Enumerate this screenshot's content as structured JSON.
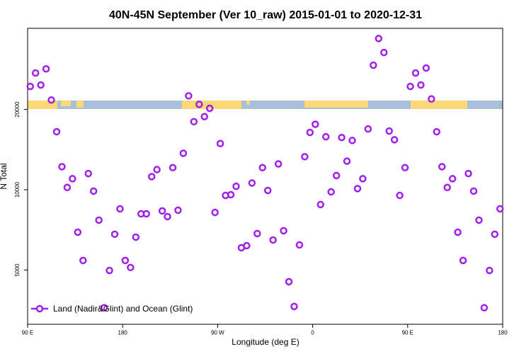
{
  "chart_data": {
    "type": "scatter",
    "title": "40N-45N September (Ver 10_raw)   2015-01-01 to 2020-12-31",
    "x_label": "Longitude (deg E)",
    "y_label": "N Total",
    "log_y": true,
    "legend_position": "bottomleft",
    "xlim": [
      90,
      540
    ],
    "xticks": [
      {
        "value": 90,
        "label": "90 E"
      },
      180,
      {
        "value": 270,
        "label": "90 W"
      },
      {
        "value": 360,
        "label": "0"
      },
      {
        "value": 450,
        "label": "90 E"
      },
      {
        "value": 540,
        "label": "180"
      }
    ],
    "ylim": [
      3130,
      40300
    ],
    "yticks": [
      5000,
      10000,
      20000
    ],
    "series": [
      {
        "name": "Land (Nadir&Glint) and Ocean (Glint)",
        "color": "#a020f0",
        "x": [
          92.5,
          97.5,
          102.5,
          107.5,
          112.5,
          117.5,
          122.5,
          127.5,
          132.5,
          137.5,
          142.5,
          147.5,
          152.5,
          157.5,
          162.5,
          167.5,
          172.5,
          177.5,
          182.5,
          187.5,
          192.5,
          197.5,
          202.5,
          207.5,
          212.5,
          217.5,
          222.5,
          227.5,
          232.5,
          237.5,
          242.5,
          247.5,
          252.5,
          257.5,
          262.5,
          267.5,
          272.5,
          277.5,
          282.5,
          287.5,
          292.5,
          297.5,
          302.5,
          307.5,
          312.5,
          317.5,
          322.5,
          327.5,
          332.5,
          337.5,
          342.5,
          347.5,
          352.5,
          357.5,
          362.5,
          367.5,
          372.5,
          377.5,
          382.5,
          387.5,
          392.5,
          397.5,
          402.5,
          407.5,
          412.5,
          417.5,
          422.5,
          427.5,
          432.5,
          437.5,
          442.5,
          447.5,
          452.5,
          457.5,
          462.5,
          467.5,
          472.5,
          477.5,
          482.5,
          487.5,
          492.5,
          497.5,
          502.5,
          507.5,
          512.5,
          517.5,
          522.5,
          527.5,
          532.5,
          537.5
        ],
        "values": [
          24400,
          27400,
          24700,
          28400,
          21700,
          16500,
          12200,
          10200,
          11000,
          6930,
          5430,
          11500,
          9880,
          7690,
          3610,
          4980,
          6810,
          8480,
          5430,
          5110,
          6640,
          8120,
          8120,
          11200,
          11900,
          8330,
          7930,
          12100,
          8380,
          13700,
          22500,
          18000,
          20900,
          18800,
          20200,
          8220,
          14900,
          9520,
          9580,
          10300,
          6060,
          6170,
          10600,
          6850,
          12100,
          9940,
          6480,
          12500,
          7020,
          4520,
          3650,
          6210,
          13300,
          16400,
          17600,
          8800,
          15800,
          9820,
          11300,
          15700,
          12800,
          15300,
          10100,
          11000,
          16900,
          29300,
          36900,
          32700,
          16600,
          15400,
          9520,
          12100,
          24400,
          27400,
          24700,
          28600,
          21900,
          16500,
          12200,
          10200,
          11000,
          6930,
          5430,
          11500,
          9880,
          7690,
          3610,
          4980,
          6810,
          8480
        ]
      }
    ]
  }
}
